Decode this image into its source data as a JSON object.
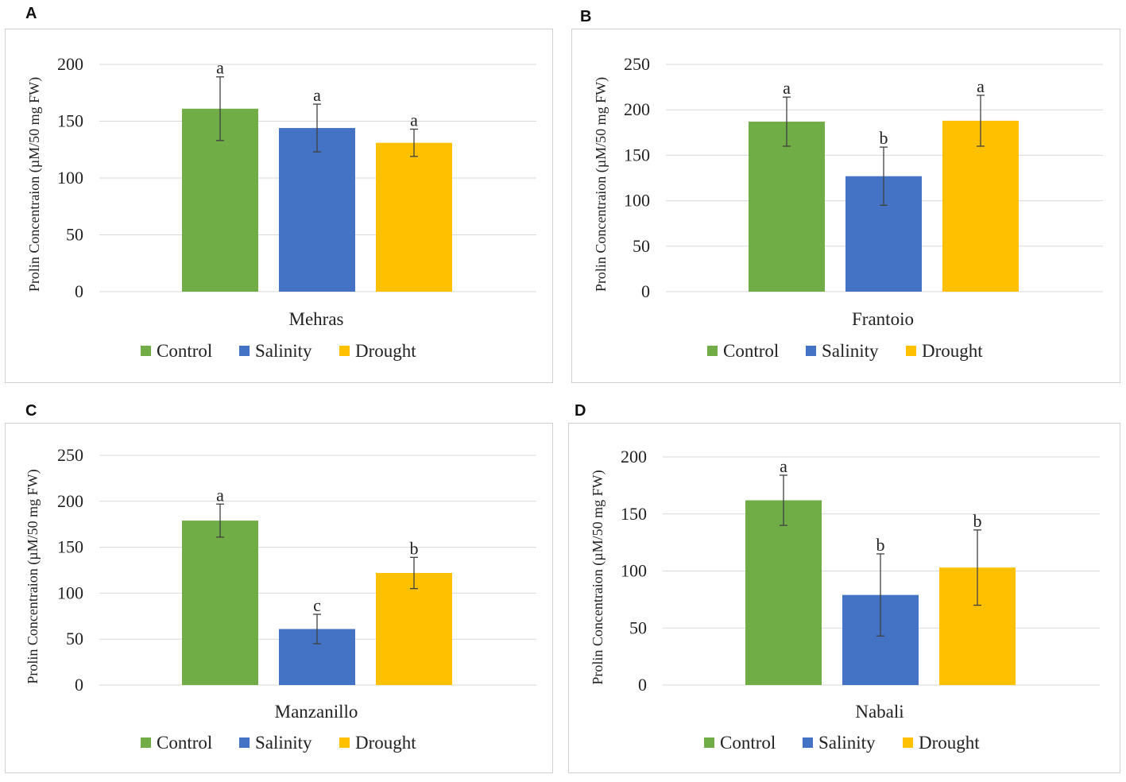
{
  "legend_labels": [
    "Control",
    "Salinity",
    "Drought"
  ],
  "colors": {
    "Control": "#70ad47",
    "Salinity": "#4472c4",
    "Drought": "#ffc000",
    "grid": "#d9d9d9",
    "error_bar": "#404040"
  },
  "chart_data": [
    {
      "panel": "A",
      "type": "bar",
      "title": "",
      "xlabel": "Mehras",
      "ylabel": "Prolin Concentraion (µM/50 mg FW)",
      "ylim": [
        0,
        200
      ],
      "yticks": [
        0,
        50,
        100,
        150,
        200
      ],
      "categories": [
        "Mehras"
      ],
      "grid": true,
      "legend": "bottom",
      "series": [
        {
          "name": "Control",
          "values": [
            161
          ],
          "error": [
            28
          ],
          "letter": "a"
        },
        {
          "name": "Salinity",
          "values": [
            144
          ],
          "error": [
            21
          ],
          "letter": "a"
        },
        {
          "name": "Drought",
          "values": [
            131
          ],
          "error": [
            12
          ],
          "letter": "a"
        }
      ]
    },
    {
      "panel": "B",
      "type": "bar",
      "title": "",
      "xlabel": "Frantoio",
      "ylabel": "Prolin Concentraion (µM/50 mg FW)",
      "ylim": [
        0,
        250
      ],
      "yticks": [
        0,
        50,
        100,
        150,
        200,
        250
      ],
      "categories": [
        "Frantoio"
      ],
      "grid": true,
      "legend": "bottom",
      "series": [
        {
          "name": "Control",
          "values": [
            187
          ],
          "error": [
            27
          ],
          "letter": "a"
        },
        {
          "name": "Salinity",
          "values": [
            127
          ],
          "error": [
            32
          ],
          "letter": "b"
        },
        {
          "name": "Drought",
          "values": [
            188
          ],
          "error": [
            28
          ],
          "letter": "a"
        }
      ]
    },
    {
      "panel": "C",
      "type": "bar",
      "title": "",
      "xlabel": "Manzanillo",
      "ylabel": "Prolin Concentraion (µM/50 mg FW)",
      "ylim": [
        0,
        250
      ],
      "yticks": [
        0,
        50,
        100,
        150,
        200,
        250
      ],
      "categories": [
        "Manzanillo"
      ],
      "grid": true,
      "legend": "bottom",
      "series": [
        {
          "name": "Control",
          "values": [
            179
          ],
          "error": [
            18
          ],
          "letter": "a"
        },
        {
          "name": "Salinity",
          "values": [
            61
          ],
          "error": [
            16
          ],
          "letter": "c"
        },
        {
          "name": "Drought",
          "values": [
            122
          ],
          "error": [
            17
          ],
          "letter": "b"
        }
      ]
    },
    {
      "panel": "D",
      "type": "bar",
      "title": "",
      "xlabel": "Nabali",
      "ylabel": "Prolin Concentraion (µM/50 mg FW)",
      "ylim": [
        0,
        200
      ],
      "yticks": [
        0,
        50,
        100,
        150,
        200
      ],
      "categories": [
        "Nabali"
      ],
      "grid": true,
      "legend": "bottom",
      "series": [
        {
          "name": "Control",
          "values": [
            162
          ],
          "error": [
            22
          ],
          "letter": "a"
        },
        {
          "name": "Salinity",
          "values": [
            79
          ],
          "error": [
            36
          ],
          "letter": "b"
        },
        {
          "name": "Drought",
          "values": [
            103
          ],
          "error": [
            33
          ],
          "letter": "b"
        }
      ]
    }
  ]
}
